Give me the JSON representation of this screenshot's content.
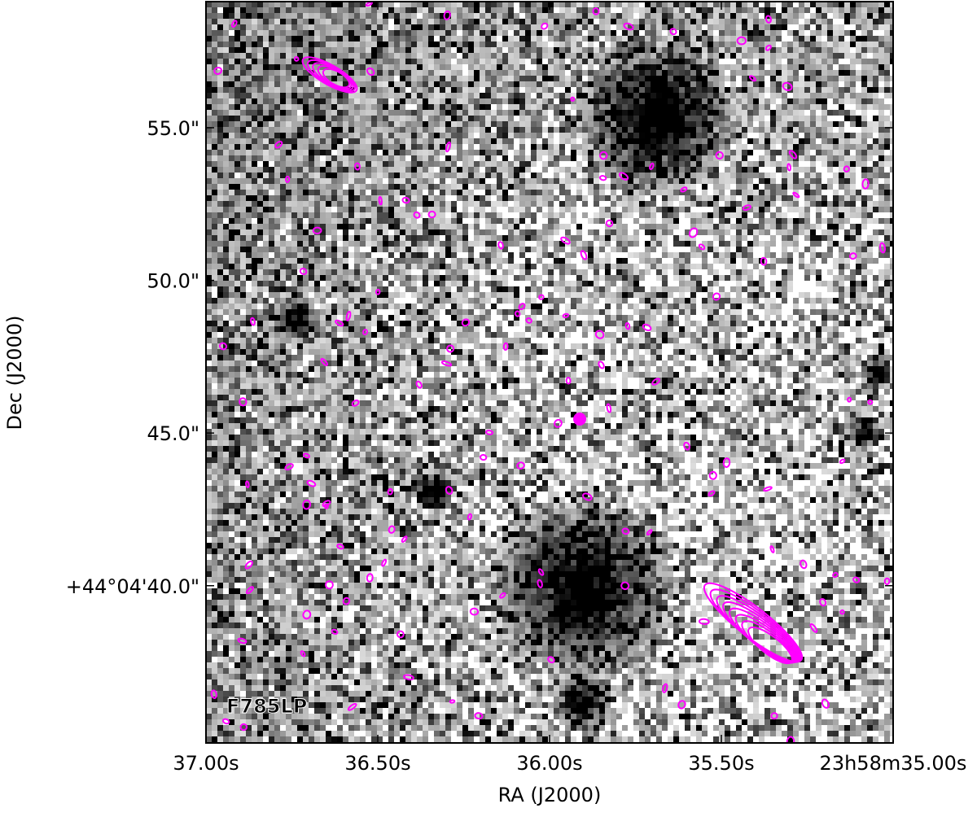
{
  "chart_data": {
    "type": "image",
    "xlabel": "RA (J2000)",
    "ylabel": "Dec (J2000)",
    "annotation": "F785LP",
    "xlim": [
      37.0,
      35.0
    ],
    "xticks": [
      {
        "value": 37.0,
        "label": "37.00s"
      },
      {
        "value": 36.5,
        "label": "36.50s"
      },
      {
        "value": 36.0,
        "label": "36.00s"
      },
      {
        "value": 35.5,
        "label": "35.50s"
      },
      {
        "value": 35.0,
        "label": "23h58m35.00s"
      }
    ],
    "ylim": [
      34.85,
      59.13
    ],
    "yticks": [
      {
        "value": 40,
        "label": "+44°04'40.0\""
      },
      {
        "value": 45,
        "label": "45.0\""
      },
      {
        "value": 50,
        "label": "50.0\""
      },
      {
        "value": 55,
        "label": "55.0\""
      }
    ],
    "contour_color": "#ff00ff"
  }
}
